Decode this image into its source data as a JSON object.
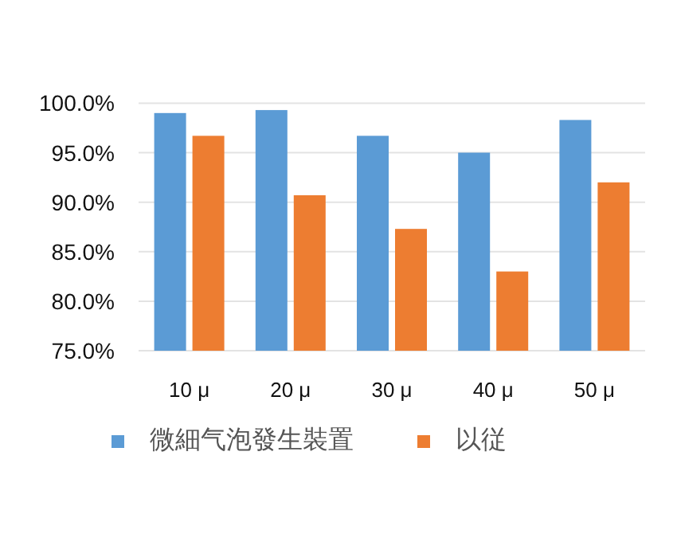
{
  "chart_data": {
    "type": "bar",
    "categories": [
      "10 μ",
      "20 μ",
      "30 μ",
      "40 μ",
      "50 μ"
    ],
    "series": [
      {
        "name": "微細气泡發生裝置",
        "color": "#5b9bd5",
        "values": [
          99.0,
          99.3,
          96.7,
          95.0,
          98.3
        ]
      },
      {
        "name": "以従",
        "color": "#ed7d31",
        "values": [
          96.7,
          90.7,
          87.3,
          83.0,
          92.0
        ]
      }
    ],
    "ylim": [
      75,
      100
    ],
    "yticks": [
      {
        "value": 75,
        "label": "75.0%"
      },
      {
        "value": 80,
        "label": "80.0%"
      },
      {
        "value": 85,
        "label": "85.0%"
      },
      {
        "value": 90,
        "label": "90.0%"
      },
      {
        "value": 95,
        "label": "95.0%"
      },
      {
        "value": 100,
        "label": "100.0%"
      }
    ],
    "grid": "y",
    "legend": "bottom"
  }
}
